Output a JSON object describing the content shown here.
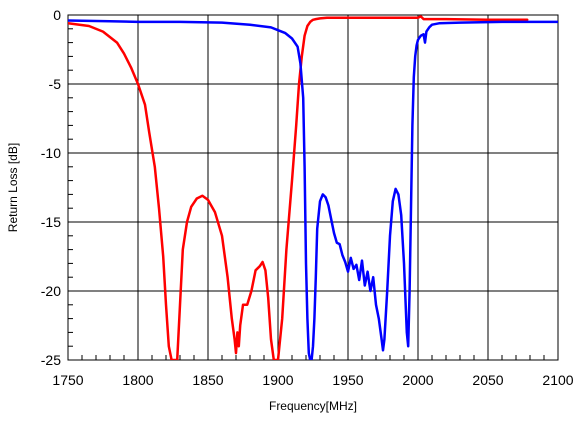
{
  "chart_data": {
    "type": "line",
    "title": "",
    "xlabel": "Frequency[MHz]",
    "ylabel": "Return Loss [dB]",
    "xlim": [
      1750,
      2100
    ],
    "ylim": [
      -25,
      0
    ],
    "x_ticks": [
      1750,
      1800,
      1850,
      1900,
      1950,
      2000,
      2050,
      2100
    ],
    "y_ticks": [
      0,
      -5,
      -10,
      -15,
      -20,
      -25
    ],
    "x_tick_labels": [
      "1750",
      "1800",
      "1850",
      "1900",
      "1950",
      "2000",
      "2050",
      "2100"
    ],
    "y_tick_labels": [
      "0",
      "-5",
      "-10",
      "-15",
      "-20",
      "-25"
    ],
    "grid": true,
    "minor_ticks": true,
    "series": [
      {
        "color": "#ff0000",
        "x": [
          1750,
          1765,
          1775,
          1785,
          1790,
          1795,
          1800,
          1805,
          1808,
          1812,
          1815,
          1818,
          1820,
          1822,
          1824,
          1826,
          1827,
          1828,
          1830,
          1832,
          1835,
          1838,
          1842,
          1846,
          1850,
          1855,
          1860,
          1864,
          1867,
          1869,
          1870,
          1871,
          1872,
          1873,
          1875,
          1878,
          1881,
          1884,
          1887,
          1889,
          1891,
          1893,
          1895,
          1897,
          1899,
          1900,
          1903,
          1906,
          1910,
          1913,
          1915,
          1917,
          1919,
          1921,
          1923,
          1925,
          1927,
          1930,
          1935,
          1945,
          1960,
          1980,
          2000,
          2002,
          2004,
          2020,
          2050,
          2078
        ],
        "y": [
          -0.6,
          -0.8,
          -1.2,
          -2.0,
          -2.8,
          -3.8,
          -5.0,
          -6.5,
          -8.5,
          -11.0,
          -14.0,
          -17.5,
          -21.0,
          -24.0,
          -25.0,
          -25.0,
          -25.0,
          -25.0,
          -21.0,
          -17.0,
          -15.0,
          -13.9,
          -13.3,
          -13.1,
          -13.4,
          -14.3,
          -16.0,
          -19.0,
          -22.0,
          -23.5,
          -24.5,
          -23.0,
          -24.0,
          -22.5,
          -21.0,
          -21.0,
          -20.0,
          -18.5,
          -18.2,
          -17.9,
          -18.5,
          -20.5,
          -23.5,
          -25.0,
          -25.0,
          -25.0,
          -22.0,
          -17.0,
          -12.0,
          -8.0,
          -5.0,
          -3.0,
          -1.5,
          -0.8,
          -0.5,
          -0.35,
          -0.3,
          -0.25,
          -0.2,
          -0.2,
          -0.2,
          -0.2,
          -0.2,
          -0.1,
          -0.3,
          -0.3,
          -0.35,
          -0.35
        ]
      },
      {
        "color": "#0000ff",
        "x": [
          1750,
          1780,
          1800,
          1830,
          1860,
          1880,
          1895,
          1900,
          1905,
          1910,
          1914,
          1916,
          1918,
          1919,
          1920,
          1921,
          1922,
          1923,
          1924,
          1925,
          1926,
          1927,
          1928,
          1930,
          1932,
          1934,
          1936,
          1938,
          1940,
          1942,
          1944,
          1946,
          1948,
          1950,
          1952,
          1954,
          1956,
          1958,
          1960,
          1962,
          1964,
          1966,
          1968,
          1970,
          1972,
          1974,
          1975,
          1976,
          1978,
          1980,
          1982,
          1984,
          1986,
          1988,
          1990,
          1992,
          1993,
          1994,
          1995,
          1996,
          1997,
          1998,
          1999,
          2000,
          2002,
          2004,
          2005,
          2006,
          2008,
          2010,
          2015,
          2030,
          2060,
          2100
        ],
        "y": [
          -0.4,
          -0.45,
          -0.5,
          -0.5,
          -0.55,
          -0.7,
          -0.9,
          -1.1,
          -1.3,
          -1.7,
          -2.3,
          -3.5,
          -6.0,
          -11.0,
          -18.0,
          -22.0,
          -24.5,
          -25.0,
          -25.0,
          -24.0,
          -22.0,
          -19.0,
          -15.5,
          -13.5,
          -13.0,
          -13.2,
          -13.8,
          -14.8,
          -15.8,
          -16.5,
          -16.6,
          -17.4,
          -17.9,
          -18.6,
          -17.6,
          -18.4,
          -18.1,
          -19.2,
          -17.8,
          -19.6,
          -18.6,
          -20.0,
          -19.0,
          -21.0,
          -22.0,
          -23.5,
          -24.3,
          -23.5,
          -20.0,
          -16.0,
          -13.5,
          -12.6,
          -13.0,
          -14.5,
          -18.0,
          -23.0,
          -24.0,
          -20.0,
          -14.0,
          -8.0,
          -4.5,
          -3.0,
          -2.2,
          -1.8,
          -1.5,
          -1.4,
          -2.0,
          -1.2,
          -0.9,
          -0.7,
          -0.6,
          -0.55,
          -0.5,
          -0.5
        ]
      }
    ]
  }
}
